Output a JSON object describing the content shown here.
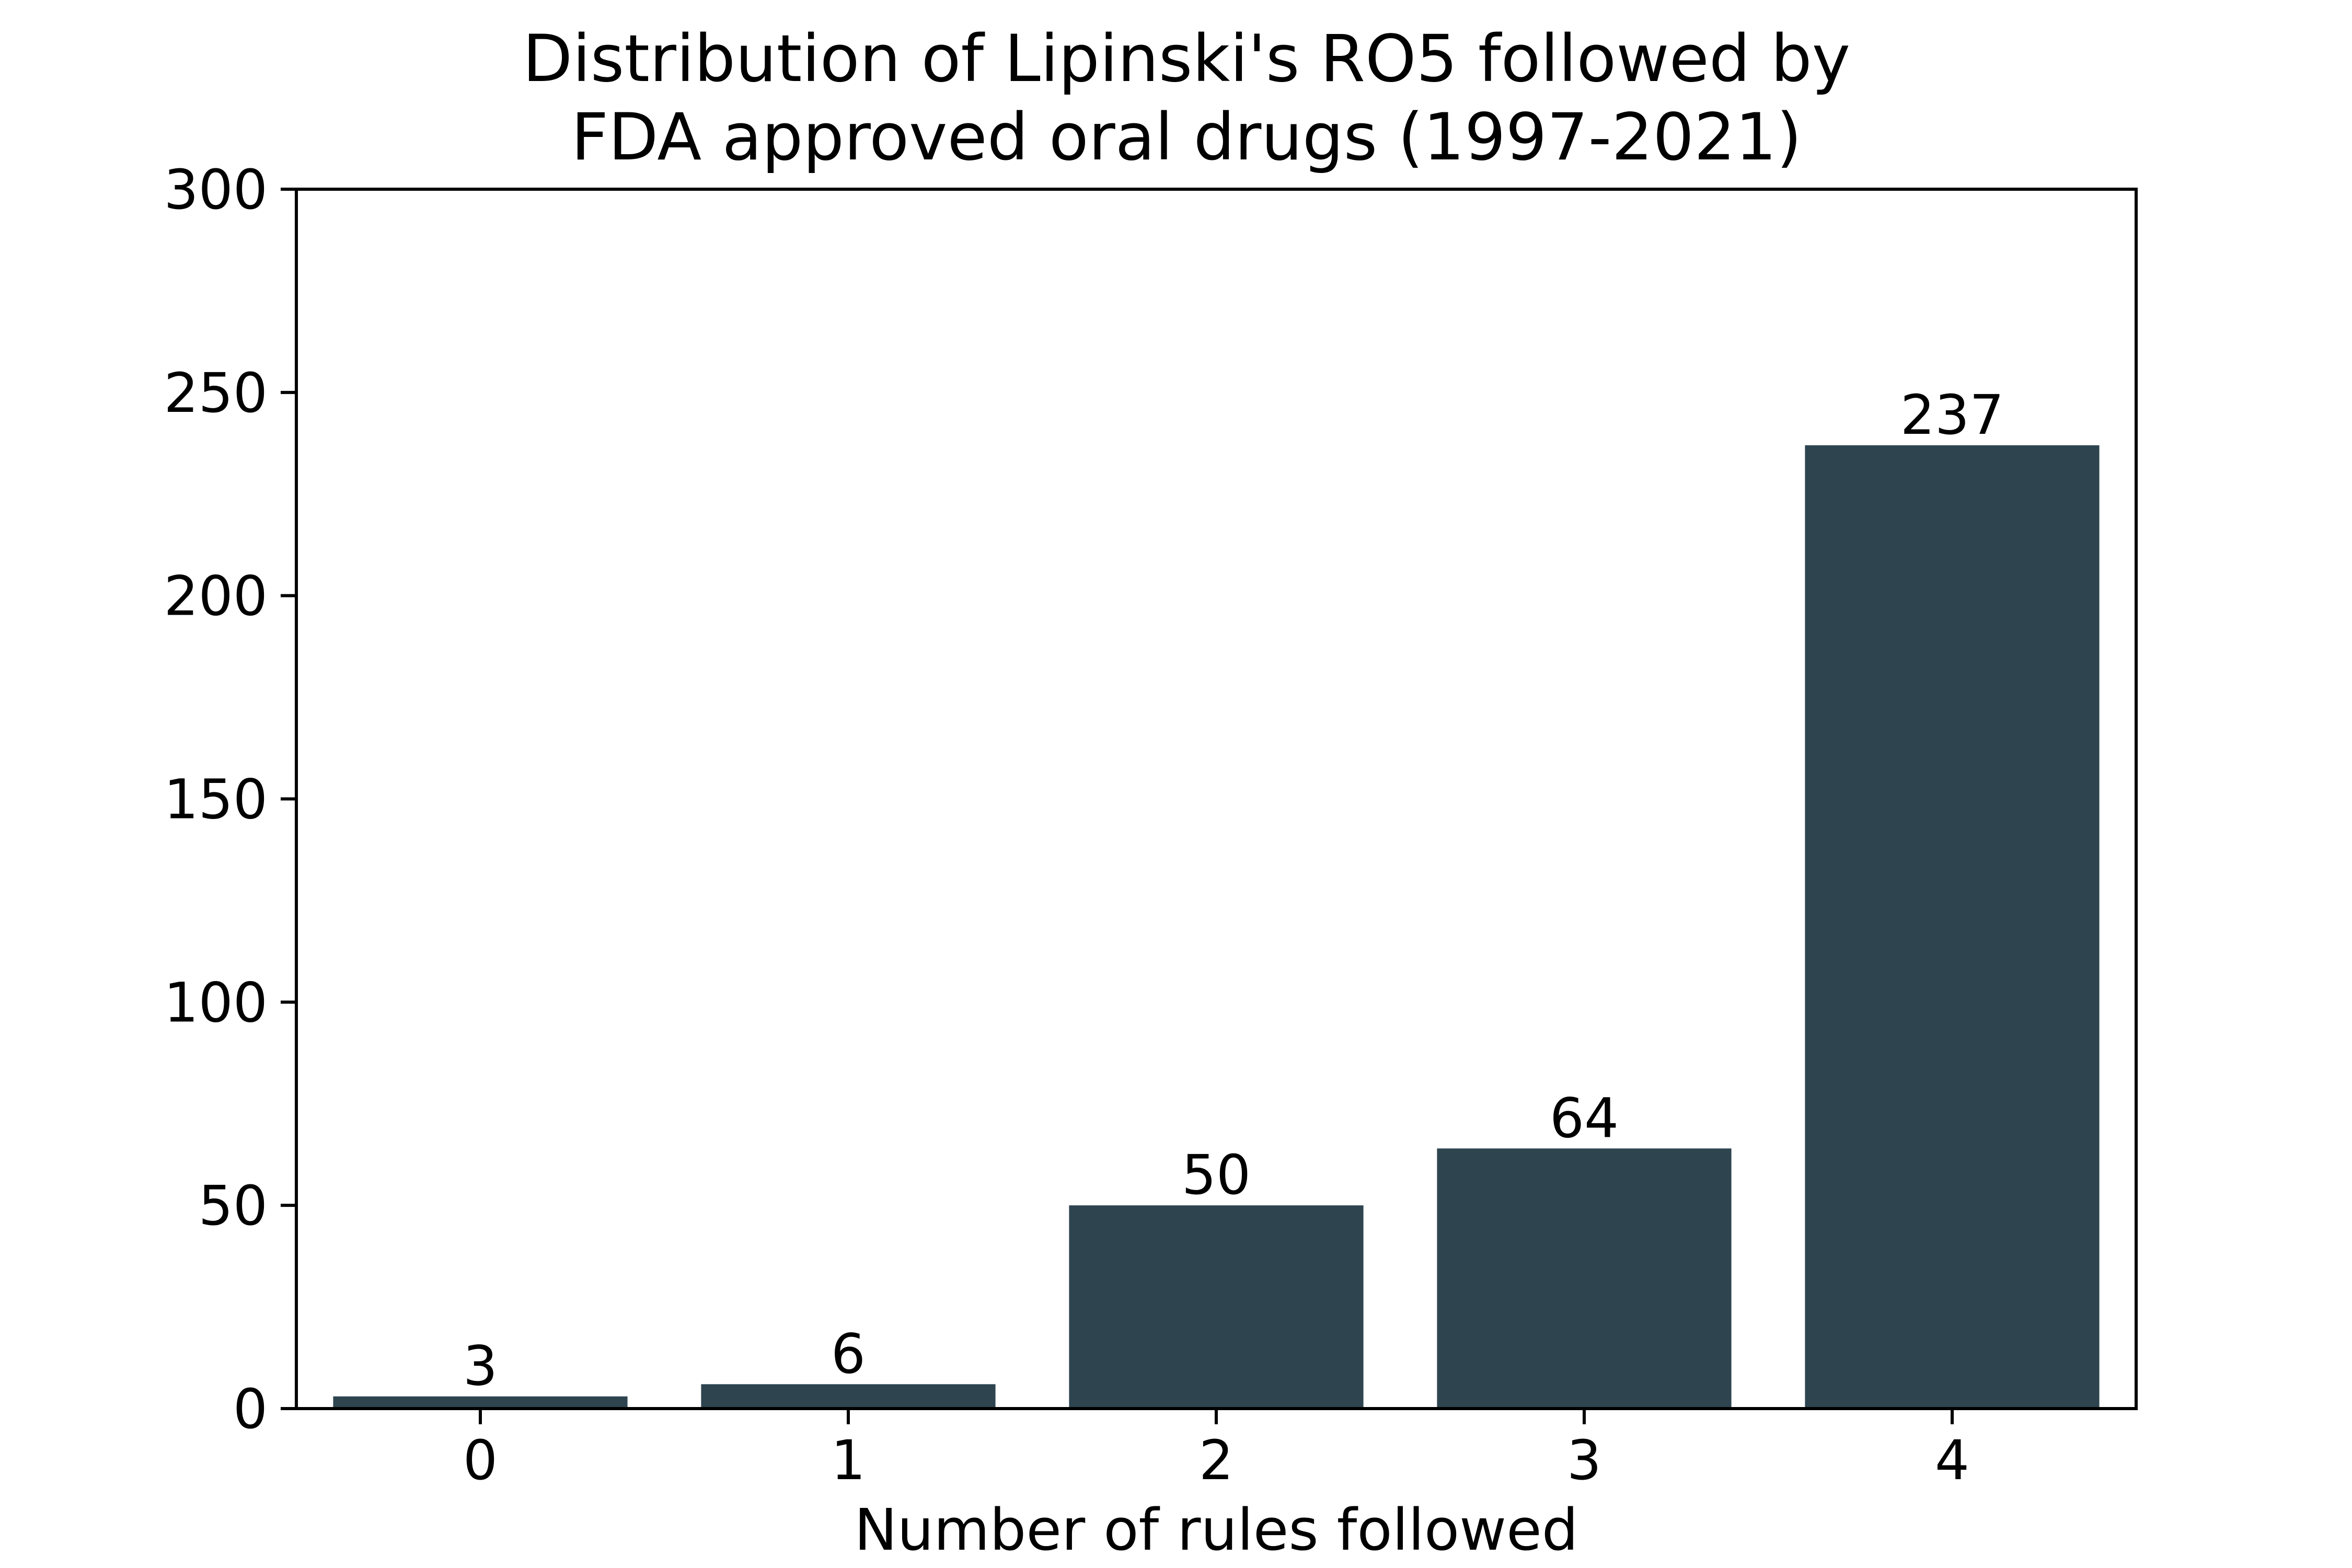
{
  "chart_data": {
    "type": "bar",
    "title_lines": [
      "Distribution of Lipinski's RO5 followed by",
      "FDA approved oral drugs (1997-2021)"
    ],
    "xlabel": "Number of rules followed",
    "ylabel": "",
    "categories": [
      "0",
      "1",
      "2",
      "3",
      "4"
    ],
    "values": [
      3,
      6,
      50,
      64,
      237
    ],
    "data_labels": [
      "3",
      "6",
      "50",
      "64",
      "237"
    ],
    "ylim": [
      0,
      300
    ],
    "yticks": [
      0,
      50,
      100,
      150,
      200,
      250,
      300
    ],
    "ytick_labels": [
      "0",
      "50",
      "100",
      "150",
      "200",
      "250",
      "300"
    ],
    "grid": false,
    "legend": "none",
    "bar_color": "#2e4550"
  }
}
